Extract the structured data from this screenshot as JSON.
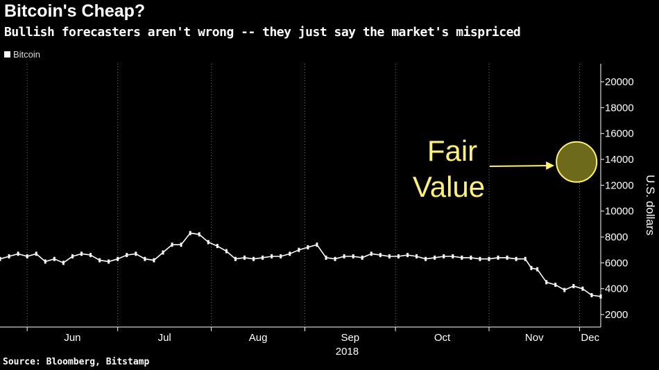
{
  "title": "Bitcoin's Cheap?",
  "subtitle": "Bullish forecasters aren't wrong -- they just say the market's mispriced",
  "source": "Source: Bloomberg, Bitstamp",
  "colors": {
    "background": "#000000",
    "series": "#ffffff",
    "annotation": "#fff36a",
    "fair_value_fill": "#6e6a1c",
    "grid": "#7a7a7a"
  },
  "chart_data": {
    "type": "line",
    "title": "Bitcoin's Cheap?",
    "ylabel": "U.S. dollars",
    "xlabel": "",
    "legend": [
      "Bitcoin"
    ],
    "legend_position": "top-left",
    "ylim": [
      2000,
      21000
    ],
    "yticks": [
      2000,
      4000,
      6000,
      8000,
      10000,
      12000,
      14000,
      16000,
      18000,
      20000
    ],
    "ytick_labels": [
      "2000",
      "4000",
      "6000",
      "8000",
      "10000",
      "12000",
      "14000",
      "16000",
      "18000",
      "20000"
    ],
    "xlim": [
      "2018-05-23",
      "2018-12-08"
    ],
    "xticks": [
      {
        "date": "2018-06-01",
        "label": "Jun"
      },
      {
        "date": "2018-07-01",
        "label": "Jul"
      },
      {
        "date": "2018-08-01",
        "label": "Aug"
      },
      {
        "date": "2018-09-01",
        "label": "Sep"
      },
      {
        "date": "2018-10-01",
        "label": "Oct"
      },
      {
        "date": "2018-11-01",
        "label": "Nov"
      },
      {
        "date": "2018-12-01",
        "label": "Dec"
      }
    ],
    "year_label": "2018",
    "grid": "vertical dotted",
    "series": [
      {
        "name": "Bitcoin",
        "x": [
          "2018-05-23",
          "2018-05-26",
          "2018-05-29",
          "2018-06-01",
          "2018-06-04",
          "2018-06-07",
          "2018-06-10",
          "2018-06-13",
          "2018-06-16",
          "2018-06-19",
          "2018-06-22",
          "2018-06-25",
          "2018-06-28",
          "2018-07-01",
          "2018-07-04",
          "2018-07-07",
          "2018-07-10",
          "2018-07-13",
          "2018-07-16",
          "2018-07-19",
          "2018-07-22",
          "2018-07-25",
          "2018-07-28",
          "2018-07-31",
          "2018-08-03",
          "2018-08-06",
          "2018-08-09",
          "2018-08-12",
          "2018-08-15",
          "2018-08-18",
          "2018-08-21",
          "2018-08-24",
          "2018-08-27",
          "2018-08-30",
          "2018-09-02",
          "2018-09-05",
          "2018-09-08",
          "2018-09-11",
          "2018-09-14",
          "2018-09-17",
          "2018-09-20",
          "2018-09-23",
          "2018-09-26",
          "2018-09-29",
          "2018-10-02",
          "2018-10-05",
          "2018-10-08",
          "2018-10-11",
          "2018-10-14",
          "2018-10-17",
          "2018-10-20",
          "2018-10-23",
          "2018-10-26",
          "2018-10-29",
          "2018-11-01",
          "2018-11-04",
          "2018-11-07",
          "2018-11-10",
          "2018-11-13",
          "2018-11-15",
          "2018-11-17",
          "2018-11-20",
          "2018-11-23",
          "2018-11-26",
          "2018-11-29",
          "2018-12-02",
          "2018-12-05",
          "2018-12-08"
        ],
        "values": [
          6300,
          6500,
          6700,
          6500,
          6700,
          6100,
          6300,
          6000,
          6500,
          6700,
          6600,
          6200,
          6100,
          6300,
          6600,
          6700,
          6300,
          6200,
          6800,
          7400,
          7400,
          8300,
          8200,
          7600,
          7300,
          6900,
          6300,
          6400,
          6300,
          6400,
          6500,
          6500,
          6700,
          7000,
          7200,
          7400,
          6400,
          6300,
          6500,
          6500,
          6400,
          6700,
          6600,
          6500,
          6500,
          6600,
          6500,
          6300,
          6400,
          6500,
          6500,
          6400,
          6400,
          6300,
          6300,
          6400,
          6400,
          6300,
          6300,
          5600,
          5500,
          4500,
          4300,
          3900,
          4200,
          4000,
          3500,
          3400
        ],
        "style": "white candlestick-like line"
      }
    ],
    "annotations": [
      {
        "text": "Fair\nValue",
        "target_date": "2018-11-30",
        "target_value": 13800,
        "marker": "circle"
      }
    ]
  }
}
